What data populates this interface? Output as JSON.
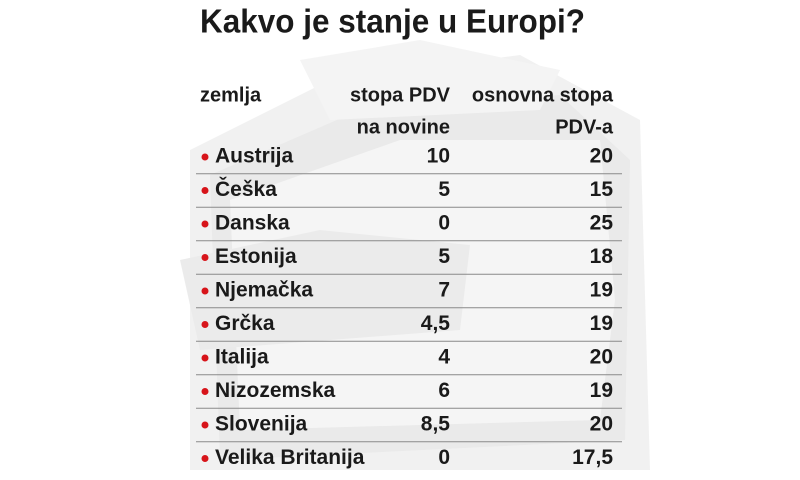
{
  "title": "Kakvo je stanje u Europi?",
  "table": {
    "header": [
      [
        "zemlja"
      ],
      [
        "stopa PDV",
        "na novine"
      ],
      [
        "osnovna stopa",
        "PDV-a"
      ]
    ],
    "rows": [
      [
        "Austrija",
        "10",
        "20"
      ],
      [
        "Češka",
        "5",
        "15"
      ],
      [
        "Danska",
        "0",
        "25"
      ],
      [
        "Estonija",
        "5",
        "18"
      ],
      [
        "Njemačka",
        "7",
        "19"
      ],
      [
        "Grčka",
        "4,5",
        "19"
      ],
      [
        "Italija",
        "4",
        "20"
      ],
      [
        "Nizozemska",
        "6",
        "19"
      ],
      [
        "Slovenija",
        "8,5",
        "20"
      ],
      [
        "Velika Britanija",
        "0",
        "17,5"
      ]
    ]
  }
}
